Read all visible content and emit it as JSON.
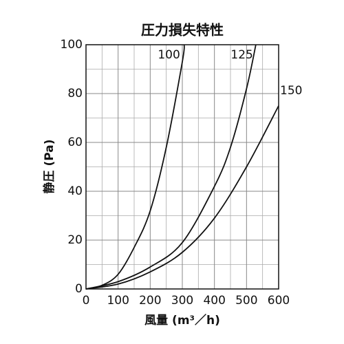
{
  "chart_data": {
    "type": "line",
    "title": "圧力損失特性",
    "x_label": "風量 (m³／h)",
    "y_label": "静圧 (Pa)",
    "xlim": [
      0,
      600
    ],
    "ylim": [
      0,
      100
    ],
    "xticks": [
      0,
      100,
      200,
      300,
      400,
      500,
      600
    ],
    "yticks": [
      0,
      20,
      40,
      60,
      80,
      100
    ],
    "x_minor_grid": [
      50,
      150,
      250,
      350,
      450,
      550
    ],
    "y_minor_grid": [
      10,
      30,
      50,
      70,
      90
    ],
    "grid": true,
    "series": [
      {
        "name": "100",
        "color": "#111111",
        "x": [
          0,
          50,
          100,
          150,
          200,
          250,
          300,
          306
        ],
        "values": [
          0,
          1.5,
          6,
          17,
          32,
          58,
          93,
          100
        ]
      },
      {
        "name": "125",
        "color": "#111111",
        "x": [
          0,
          100,
          200,
          300,
          400,
          450,
          500,
          529
        ],
        "values": [
          0,
          3,
          9,
          19,
          42,
          58,
          82,
          100
        ]
      },
      {
        "name": "150",
        "color": "#111111",
        "x": [
          0,
          100,
          200,
          300,
          400,
          500,
          600
        ],
        "values": [
          0,
          2,
          7,
          15,
          29,
          50,
          75
        ]
      }
    ]
  }
}
